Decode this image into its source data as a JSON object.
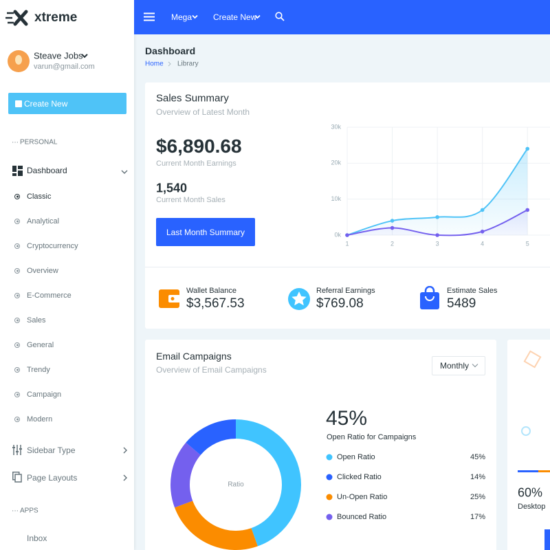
{
  "brand": {
    "name": "xtreme"
  },
  "topbar": {
    "menu": [
      "Mega",
      "Create New"
    ]
  },
  "user": {
    "name": "Steave Jobs",
    "email": "varun@gmail.com"
  },
  "sidebar": {
    "button": "Create New",
    "sections": [
      "PERSONAL",
      "APPS"
    ],
    "dashboard": "Dashboard",
    "dashboard_items": [
      "Classic",
      "Analytical",
      "Cryptocurrency",
      "Overview",
      "E-Commerce",
      "Sales",
      "General",
      "Trendy",
      "Campaign",
      "Modern"
    ],
    "items": [
      "Sidebar Type",
      "Page Layouts"
    ],
    "apps_items": [
      "Inbox"
    ]
  },
  "page": {
    "title": "Dashboard",
    "breadcrumb": [
      "Home",
      "Library"
    ]
  },
  "sales_summary": {
    "title": "Sales Summary",
    "subtitle": "Overview of Latest Month",
    "earnings": "$6,890.68",
    "earnings_label": "Current Month Earnings",
    "sales": "1,540",
    "sales_label": "Current Month Sales",
    "button": "Last Month Summary"
  },
  "stats": [
    {
      "label": "Wallet Balance",
      "value": "$3,567.53"
    },
    {
      "label": "Referral Earnings",
      "value": "$769.08"
    },
    {
      "label": "Estimate Sales",
      "value": 5489
    }
  ],
  "email_campaigns": {
    "title": "Email Campaigns",
    "subtitle": "Overview of Email Campaigns",
    "dropdown": "Monthly",
    "headline": "45%",
    "headline_label": "Open Ratio for Campaigns"
  },
  "device_card": {
    "value": "60%",
    "label": "Desktop"
  },
  "chart_data": [
    {
      "type": "line",
      "x": [
        1,
        2,
        3,
        4,
        5
      ],
      "xlim": [
        1,
        5.5
      ],
      "xticks": [
        1,
        2,
        3,
        4,
        5
      ],
      "ylim": [
        0,
        30000
      ],
      "yticks": [
        {
          "value": 0,
          "label": "0k"
        },
        {
          "value": 10000,
          "label": "10k"
        },
        {
          "value": 20000,
          "label": "20k"
        },
        {
          "value": 30000,
          "label": "30k"
        }
      ],
      "grid": true,
      "series": [
        {
          "color": "#4fc3f7",
          "values": [
            0,
            4000,
            5000,
            7000,
            24000
          ]
        },
        {
          "color": "#7460ee",
          "values": [
            0,
            2000,
            0,
            1000,
            7000
          ]
        }
      ]
    },
    {
      "type": "donut",
      "center_label": "Ratio",
      "categories": [
        "Open Ratio",
        "Clicked Ratio",
        "Un-Open Ratio",
        "Bounced Ratio"
      ],
      "values": [
        45,
        14,
        25,
        17
      ],
      "value_labels": [
        "45%",
        "14%",
        "25%",
        "17%"
      ],
      "colors": [
        "#40c4ff",
        "#2962ff",
        "#fb8c00",
        "#7460ee"
      ]
    }
  ]
}
